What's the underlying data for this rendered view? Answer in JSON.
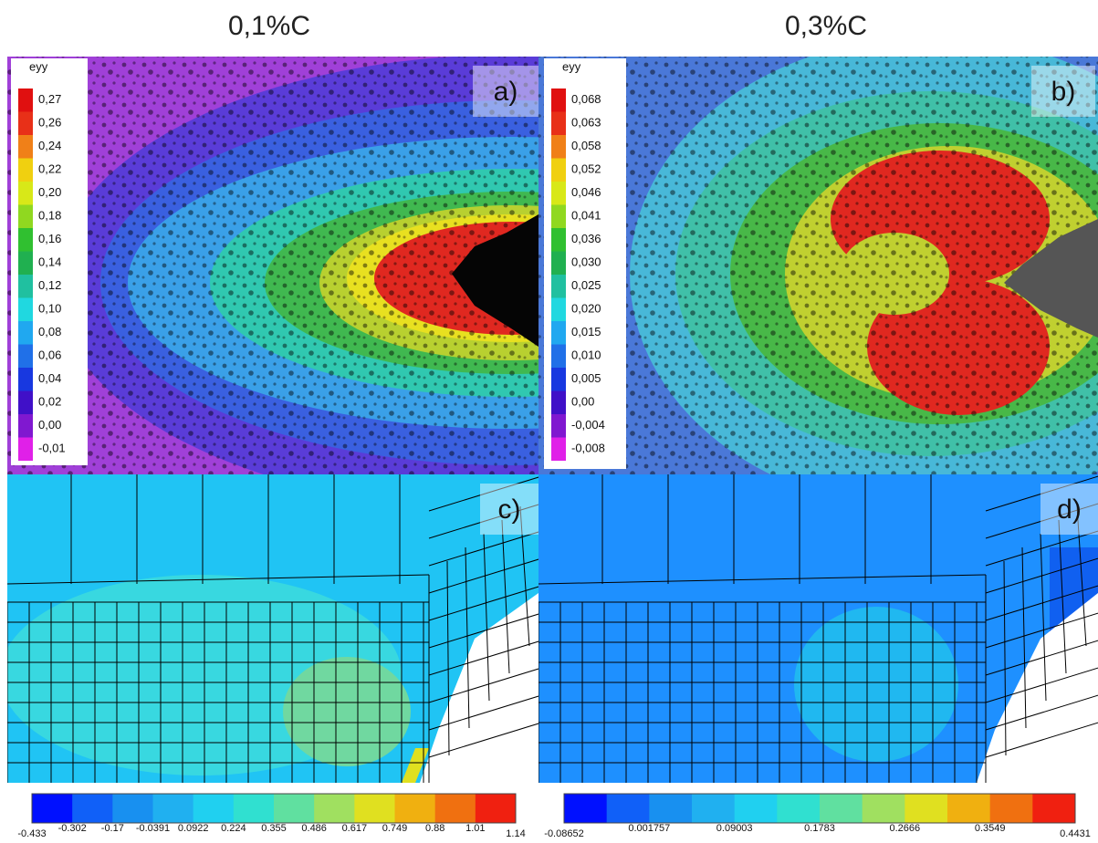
{
  "titles": [
    "0,1%C",
    "0,3%C"
  ],
  "panels": [
    {
      "label": "a)",
      "legend": {
        "title": "eyy",
        "labels": [
          "0,27",
          "0,26",
          "0,24",
          "0,22",
          "0,20",
          "0,18",
          "0,16",
          "0,14",
          "0,12",
          "0,10",
          "0,08",
          "0,06",
          "0,04",
          "0,02",
          "0,00",
          "-0,01"
        ]
      }
    },
    {
      "label": "b)",
      "legend": {
        "title": "eyy",
        "labels": [
          "0,068",
          "0,063",
          "0,058",
          "0,052",
          "0,046",
          "0,041",
          "0,036",
          "0,030",
          "0,025",
          "0,020",
          "0,015",
          "0,010",
          "0,005",
          "0,00",
          "-0,004",
          "-0,008"
        ]
      }
    },
    {
      "label": "c)",
      "colorbar": [
        "-0.433",
        "-0.302",
        "-0.17",
        "-0.0391",
        "0.0922",
        "0.224",
        "0.355",
        "0.486",
        "0.617",
        "0.749",
        "0.88",
        "1.01",
        "1.14"
      ]
    },
    {
      "label": "d)",
      "colorbar": [
        "-0.08652",
        "0.001757",
        "0.09003",
        "0.1783",
        "0.2666",
        "0.3549",
        "0.4431"
      ]
    }
  ]
}
